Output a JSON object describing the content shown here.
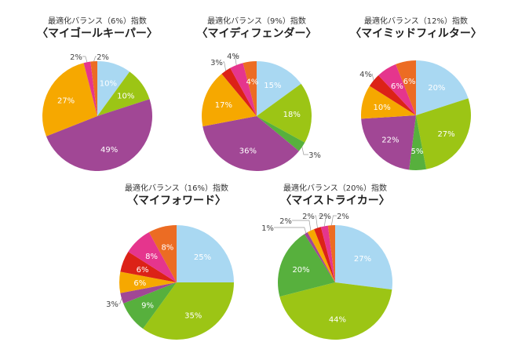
{
  "chart_data": [
    {
      "type": "pie",
      "title": "最適化バランス（6%）指数",
      "subtitle": "〈マイゴールキーパー〉",
      "slices": [
        {
          "value": 10,
          "label": "10%",
          "color": "#a9d8f2",
          "pos": "in"
        },
        {
          "value": 10,
          "label": "10%",
          "color": "#9cc515",
          "pos": "in"
        },
        {
          "value": 49,
          "label": "49%",
          "color": "#a14795",
          "pos": "in"
        },
        {
          "value": 27,
          "label": "27%",
          "color": "#f6a800",
          "pos": "in"
        },
        {
          "value": 2,
          "label": "2%",
          "color": "#e5358d",
          "pos": "out"
        },
        {
          "value": 2,
          "label": "2%",
          "color": "#ec6c23",
          "pos": "out"
        }
      ]
    },
    {
      "type": "pie",
      "title": "最適化バランス（9%）指数",
      "subtitle": "〈マイディフェンダー〉",
      "slices": [
        {
          "value": 15,
          "label": "15%",
          "color": "#a9d8f2",
          "pos": "in"
        },
        {
          "value": 18,
          "label": "18%",
          "color": "#9cc515",
          "pos": "in"
        },
        {
          "value": 3,
          "label": "3%",
          "color": "#57b03d",
          "pos": "out"
        },
        {
          "value": 36,
          "label": "36%",
          "color": "#a14795",
          "pos": "in"
        },
        {
          "value": 17,
          "label": "17%",
          "color": "#f6a800",
          "pos": "in"
        },
        {
          "value": 3,
          "label": "3%",
          "color": "#dc2217",
          "pos": "out"
        },
        {
          "value": 4,
          "label": "4%",
          "color": "#e5358d",
          "pos": "out"
        },
        {
          "value": 4,
          "label": "4%",
          "color": "#ec6c23",
          "pos": "in"
        }
      ]
    },
    {
      "type": "pie",
      "title": "最適化バランス（12%）指数",
      "subtitle": "〈マイミッドフィルター〉",
      "slices": [
        {
          "value": 20,
          "label": "20%",
          "color": "#a9d8f2",
          "pos": "in"
        },
        {
          "value": 27,
          "label": "27%",
          "color": "#9cc515",
          "pos": "in"
        },
        {
          "value": 5,
          "label": "5%",
          "color": "#57b03d",
          "pos": "in"
        },
        {
          "value": 22,
          "label": "22%",
          "color": "#a14795",
          "pos": "in"
        },
        {
          "value": 10,
          "label": "10%",
          "color": "#f6a800",
          "pos": "in"
        },
        {
          "value": 4,
          "label": "4%",
          "color": "#dc2217",
          "pos": "out"
        },
        {
          "value": 6,
          "label": "6%",
          "color": "#e5358d",
          "pos": "in"
        },
        {
          "value": 6,
          "label": "6%",
          "color": "#ec6c23",
          "pos": "in"
        }
      ]
    },
    {
      "type": "pie",
      "title": "最適化バランス（16%）指数",
      "subtitle": "〈マイフォワード〉",
      "slices": [
        {
          "value": 25,
          "label": "25%",
          "color": "#a9d8f2",
          "pos": "in"
        },
        {
          "value": 35,
          "label": "35%",
          "color": "#9cc515",
          "pos": "in"
        },
        {
          "value": 9,
          "label": "9%",
          "color": "#57b03d",
          "pos": "in"
        },
        {
          "value": 3,
          "label": "3%",
          "color": "#a14795",
          "pos": "out"
        },
        {
          "value": 6,
          "label": "6%",
          "color": "#f6a800",
          "pos": "in"
        },
        {
          "value": 6,
          "label": "6%",
          "color": "#dc2217",
          "pos": "in"
        },
        {
          "value": 8,
          "label": "8%",
          "color": "#e5358d",
          "pos": "in"
        },
        {
          "value": 8,
          "label": "8%",
          "color": "#ec6c23",
          "pos": "in"
        }
      ]
    },
    {
      "type": "pie",
      "title": "最適化バランス（20%）指数",
      "subtitle": "〈マイストライカー〉",
      "slices": [
        {
          "value": 27,
          "label": "27%",
          "color": "#a9d8f2",
          "pos": "in"
        },
        {
          "value": 44,
          "label": "44%",
          "color": "#9cc515",
          "pos": "in"
        },
        {
          "value": 20,
          "label": "20%",
          "color": "#57b03d",
          "pos": "in"
        },
        {
          "value": 1,
          "label": "1%",
          "color": "#a14795",
          "pos": "out"
        },
        {
          "value": 2,
          "label": "2%",
          "color": "#f6a800",
          "pos": "out"
        },
        {
          "value": 2,
          "label": "2%",
          "color": "#dc2217",
          "pos": "out"
        },
        {
          "value": 2,
          "label": "2%",
          "color": "#e5358d",
          "pos": "out"
        },
        {
          "value": 2,
          "label": "2%",
          "color": "#ec6c23",
          "pos": "out"
        }
      ]
    }
  ]
}
